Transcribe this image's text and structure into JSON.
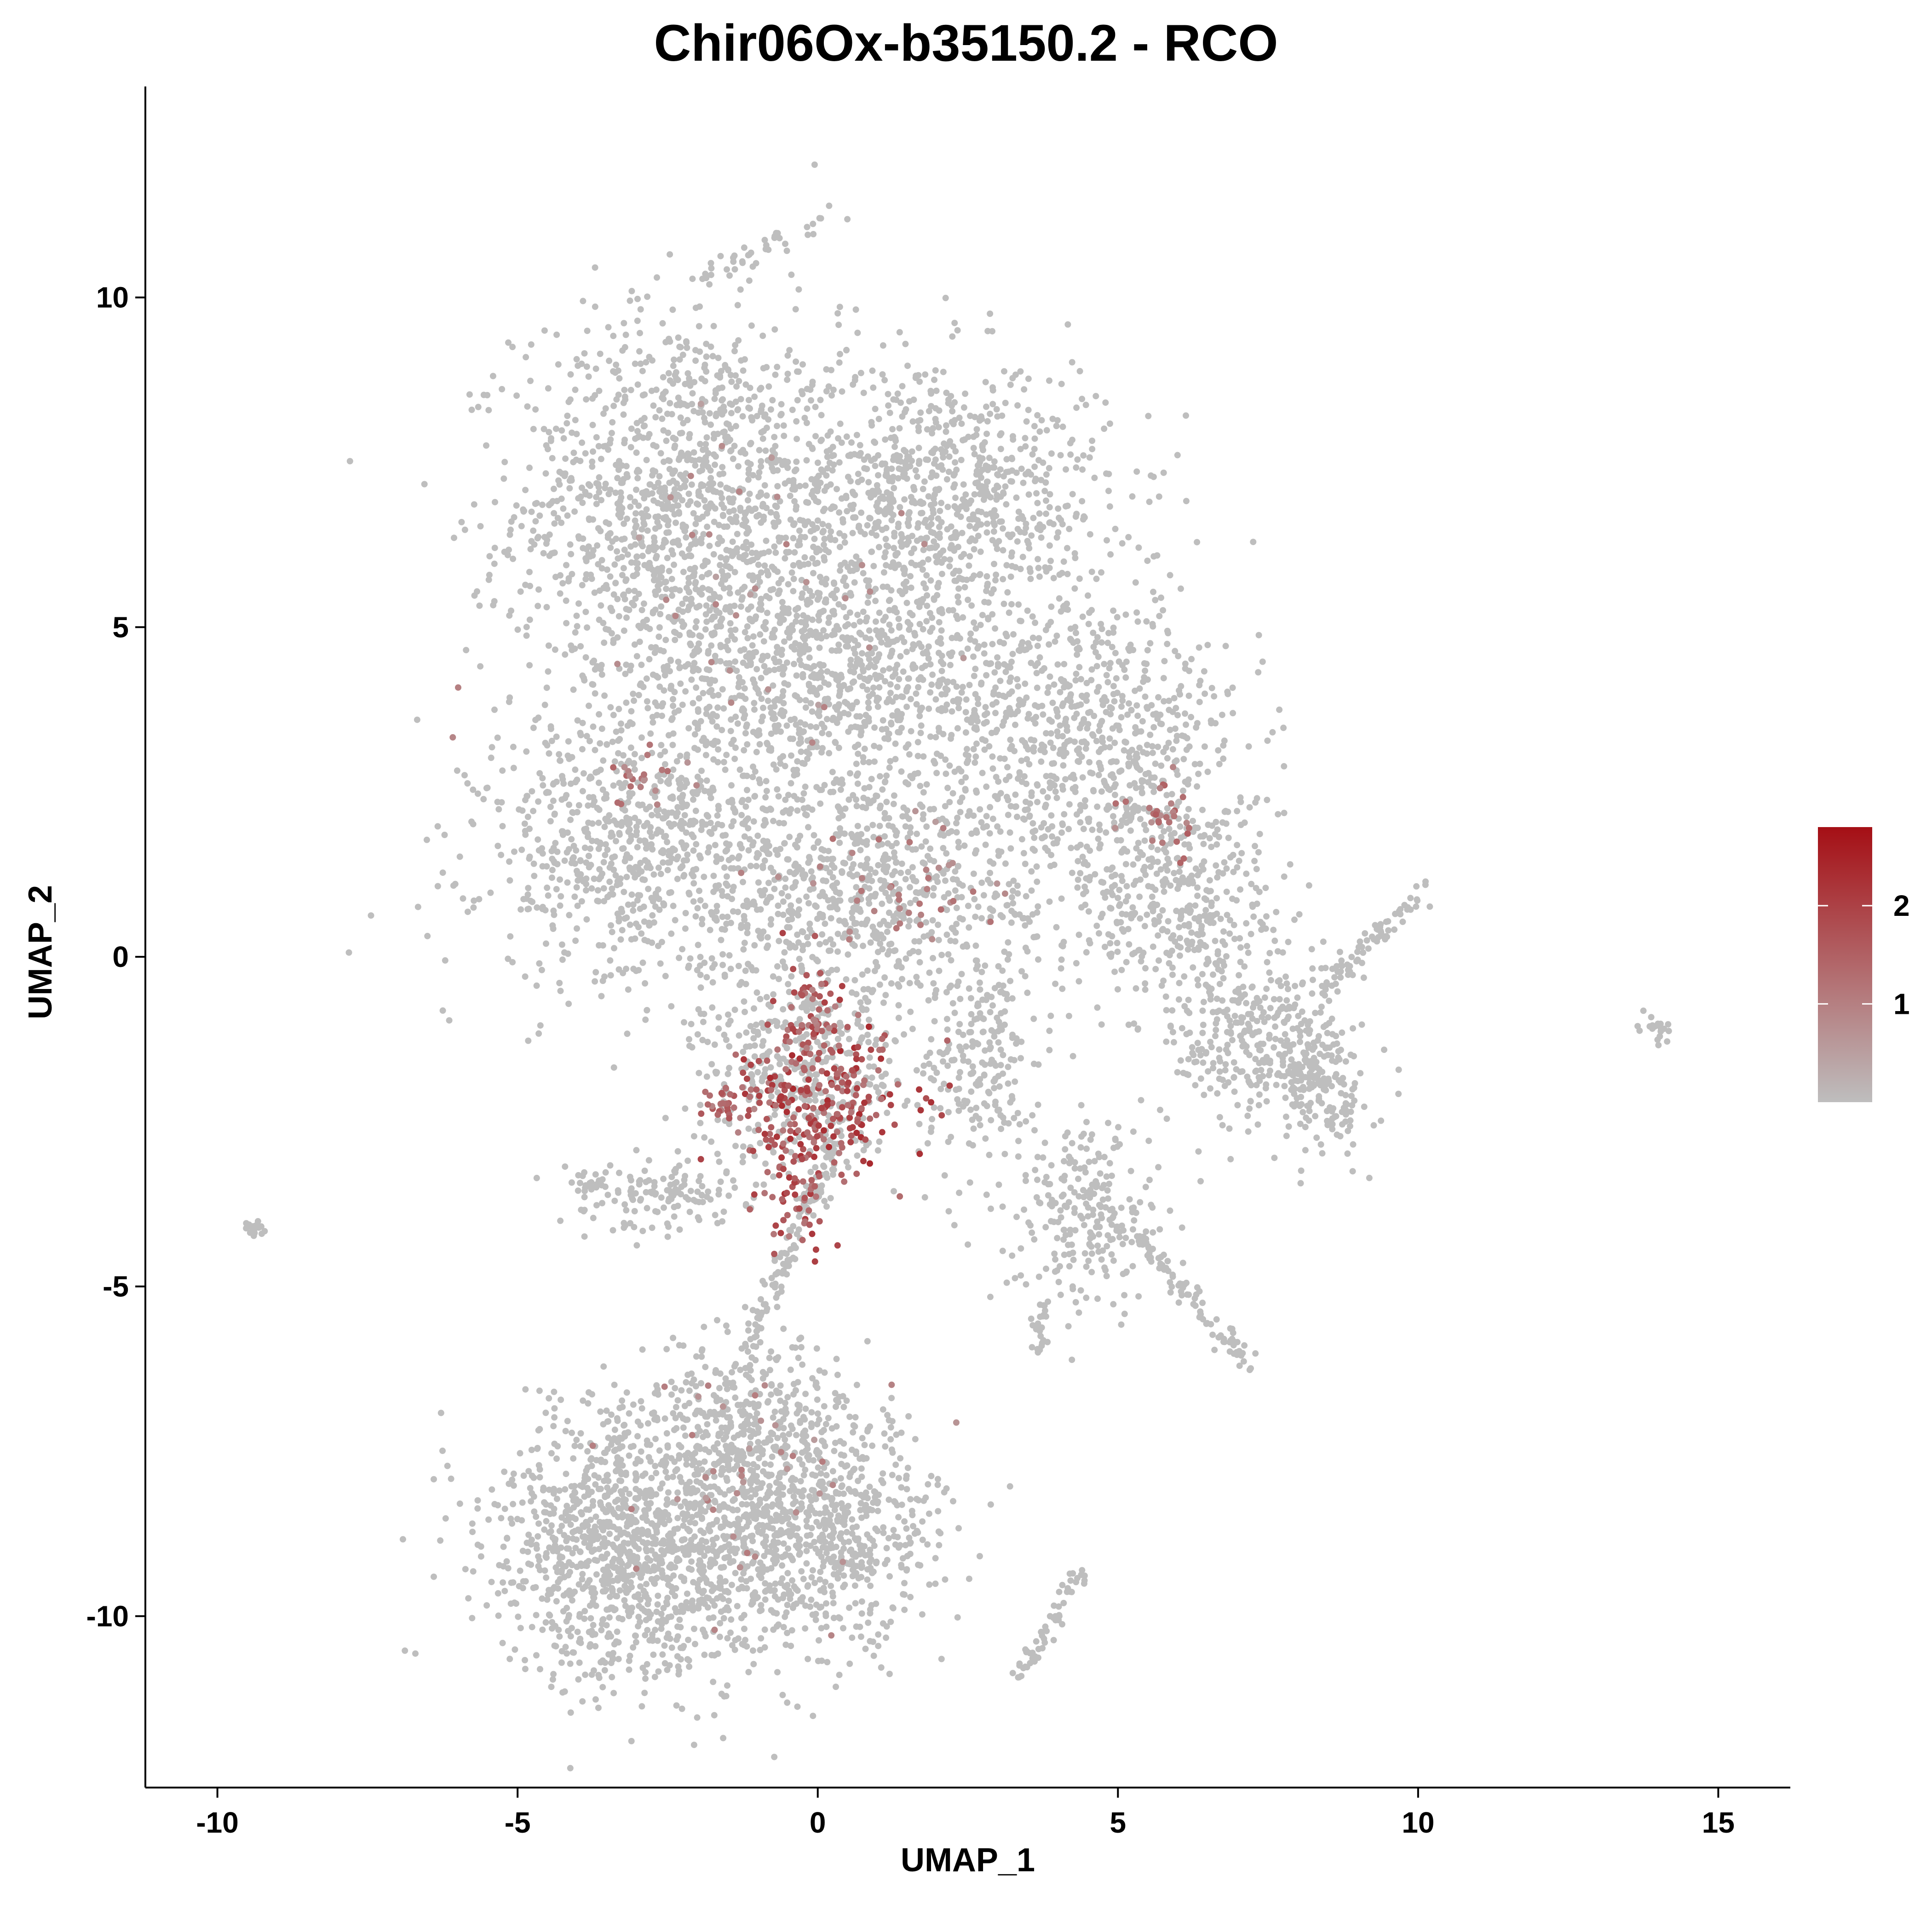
{
  "chart_data": {
    "type": "scatter",
    "title": "Chir06Ox-b35150.2 - RCO",
    "xlabel": "UMAP_1",
    "ylabel": "UMAP_2",
    "xlim": [
      -11.2,
      16.2
    ],
    "ylim": [
      -12.6,
      13.2
    ],
    "x_ticks": [
      {
        "value": -10,
        "label": "-10"
      },
      {
        "value": -5,
        "label": "-5"
      },
      {
        "value": 0,
        "label": "0"
      },
      {
        "value": 5,
        "label": "5"
      },
      {
        "value": 10,
        "label": "10"
      },
      {
        "value": 15,
        "label": "15"
      }
    ],
    "y_ticks": [
      {
        "value": -10,
        "label": "-10"
      },
      {
        "value": -5,
        "label": "-5"
      },
      {
        "value": 0,
        "label": "0"
      },
      {
        "value": 5,
        "label": "5"
      },
      {
        "value": 10,
        "label": "10"
      }
    ],
    "grid": false,
    "point_color_low": "#bebebe",
    "point_color_high": "#a50f15",
    "colorbar": {
      "placement": "right",
      "min": 0,
      "max": 2.8,
      "ticks": [
        {
          "value": 1,
          "label": "1"
        },
        {
          "value": 2,
          "label": "2"
        }
      ]
    },
    "clusters": [
      {
        "cx": -2.3,
        "cy": 6.8,
        "sx": 1.7,
        "sy": 1.9,
        "n": 1300
      },
      {
        "cx": 2.0,
        "cy": 7.0,
        "sx": 1.8,
        "sy": 1.3,
        "n": 900
      },
      {
        "cx": 0.3,
        "cy": 4.2,
        "sx": 2.4,
        "sy": 1.2,
        "n": 1000
      },
      {
        "cx": -2.9,
        "cy": 1.6,
        "sx": 1.7,
        "sy": 1.3,
        "n": 800
      },
      {
        "cx": 4.6,
        "cy": 3.2,
        "sx": 1.6,
        "sy": 1.4,
        "n": 700
      },
      {
        "cx": 6.0,
        "cy": 0.8,
        "sx": 1.1,
        "sy": 1.2,
        "n": 400
      },
      {
        "cx": 0.8,
        "cy": 1.0,
        "sx": 1.9,
        "sy": 1.1,
        "n": 700
      },
      {
        "cx": 7.4,
        "cy": -1.3,
        "sx": 0.9,
        "sy": 0.8,
        "n": 300
      },
      {
        "cx": 8.4,
        "cy": -2.0,
        "sx": 0.5,
        "sy": 0.7,
        "n": 160
      },
      {
        "cx": -0.2,
        "cy": -1.8,
        "sx": 1.1,
        "sy": 0.9,
        "n": 420
      },
      {
        "cx": 2.7,
        "cy": -1.6,
        "sx": 0.6,
        "sy": 1.0,
        "n": 200
      },
      {
        "cx": -3.0,
        "cy": -8.9,
        "sx": 1.5,
        "sy": 1.3,
        "n": 1300
      },
      {
        "cx": 0.0,
        "cy": -8.7,
        "sx": 1.3,
        "sy": 1.1,
        "n": 800
      },
      {
        "cx": -1.2,
        "cy": -7.0,
        "sx": 1.0,
        "sy": 0.8,
        "n": 300
      },
      {
        "cx": 4.5,
        "cy": -3.9,
        "sx": 0.8,
        "sy": 0.9,
        "n": 250
      },
      {
        "cx": -2.5,
        "cy": -3.6,
        "sx": 1.1,
        "sy": 0.35,
        "n": 160
      },
      {
        "cx": -9.4,
        "cy": -4.1,
        "sx": 0.12,
        "sy": 0.1,
        "n": 20
      },
      {
        "cx": 14.0,
        "cy": -1.1,
        "sx": 0.2,
        "sy": 0.12,
        "n": 20
      }
    ],
    "strands": [
      {
        "x0": 0.4,
        "y0": 11.3,
        "x1": -2.2,
        "y1": 10.2,
        "n": 40
      },
      {
        "x0": 8.4,
        "y0": -0.5,
        "x1": 10.1,
        "y1": 1.0,
        "n": 70
      },
      {
        "x0": 5.3,
        "y0": -4.2,
        "x1": 7.2,
        "y1": -6.2,
        "n": 90
      },
      {
        "x0": 4.4,
        "y0": -9.3,
        "x1": 3.4,
        "y1": -10.9,
        "n": 60
      },
      {
        "x0": 0.3,
        "y0": -2.8,
        "x1": -1.2,
        "y1": -6.0,
        "n": 120
      },
      {
        "x0": 3.8,
        "y0": -5.2,
        "x1": 3.6,
        "y1": -6.0,
        "n": 25
      }
    ],
    "expression_hotspots": [
      {
        "cx": 0.0,
        "cy": -2.2,
        "sx": 0.9,
        "sy": 0.8,
        "n": 260,
        "level": 2.4
      },
      {
        "cx": -0.1,
        "cy": -0.7,
        "sx": 0.3,
        "sy": 0.5,
        "n": 40,
        "level": 2.0
      },
      {
        "cx": -0.4,
        "cy": -3.8,
        "sx": 0.3,
        "sy": 0.5,
        "n": 40,
        "level": 2.2
      },
      {
        "cx": -1.5,
        "cy": -2.2,
        "sx": 0.3,
        "sy": 0.2,
        "n": 30,
        "level": 1.8
      },
      {
        "cx": 5.7,
        "cy": 1.9,
        "sx": 0.4,
        "sy": 0.4,
        "n": 30,
        "level": 1.6
      },
      {
        "cx": -2.9,
        "cy": 2.8,
        "sx": 0.3,
        "sy": 0.3,
        "n": 20,
        "level": 1.4
      },
      {
        "cx": 1.6,
        "cy": 1.0,
        "sx": 1.2,
        "sy": 0.6,
        "n": 40,
        "level": 1.3
      },
      {
        "cx": -1.0,
        "cy": -8.0,
        "sx": 1.5,
        "sy": 1.2,
        "n": 40,
        "level": 1.1
      },
      {
        "cx": -1.0,
        "cy": 5.0,
        "sx": 2.0,
        "sy": 2.0,
        "n": 40,
        "level": 1.0
      }
    ]
  }
}
